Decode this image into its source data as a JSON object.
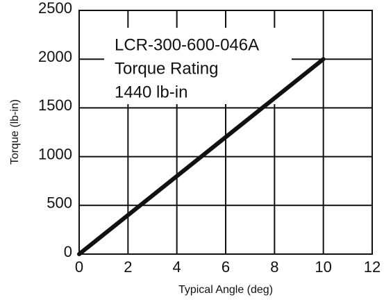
{
  "chart_data": {
    "type": "line",
    "x_label": "Typical Angle (deg)",
    "y_label": "Torque (lb-in)",
    "annotations": [
      "LCR-300-600-046A",
      "Torque Rating",
      "1440 lb-in"
    ],
    "x": [
      0,
      10
    ],
    "series": [
      {
        "name": "Torque",
        "color": "#111111",
        "values": [
          0,
          2000
        ]
      }
    ],
    "xlim": [
      0,
      12
    ],
    "xticks": [
      0,
      2,
      4,
      6,
      8,
      10,
      12
    ],
    "ylim": [
      0,
      2500
    ],
    "yticks": [
      0,
      500,
      1000,
      1500,
      2000,
      2500
    ],
    "grid": true
  }
}
